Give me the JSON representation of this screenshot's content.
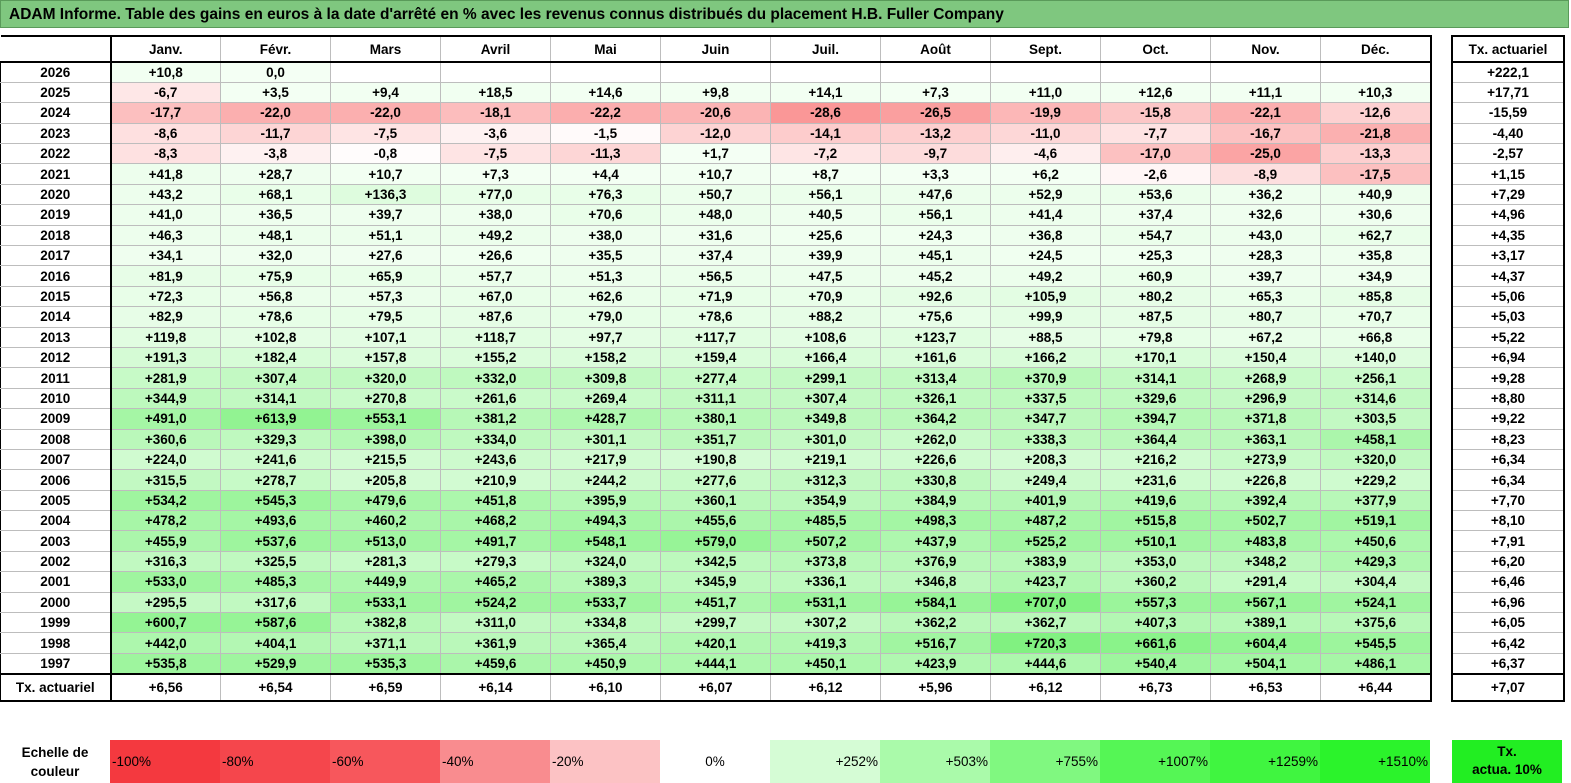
{
  "title": "ADAM Informe. Table des gains en euros à la date d'arrêté en % avec les revenus connus distribués du placement H.B. Fuller Company",
  "chart_data": {
    "type": "table",
    "columns": [
      "Janv.",
      "Févr.",
      "Mars",
      "Avril",
      "Mai",
      "Juin",
      "Juil.",
      "Août",
      "Sept.",
      "Oct.",
      "Nov.",
      "Déc."
    ],
    "side_header": "Tx. actuariel",
    "rows": [
      {
        "year": "2026",
        "values": [
          "+10,8",
          "0,0",
          "",
          "",
          "",
          "",
          "",
          "",
          "",
          "",
          "",
          ""
        ],
        "tx": "+222,1"
      },
      {
        "year": "2025",
        "values": [
          "-6,7",
          "+3,5",
          "+9,4",
          "+18,5",
          "+14,6",
          "+9,8",
          "+14,1",
          "+7,3",
          "+11,0",
          "+12,6",
          "+11,1",
          "+10,3"
        ],
        "tx": "+17,71"
      },
      {
        "year": "2024",
        "values": [
          "-17,7",
          "-22,0",
          "-22,0",
          "-18,1",
          "-22,2",
          "-20,6",
          "-28,6",
          "-26,5",
          "-19,9",
          "-15,8",
          "-22,1",
          "-12,6"
        ],
        "tx": "-15,59"
      },
      {
        "year": "2023",
        "values": [
          "-8,6",
          "-11,7",
          "-7,5",
          "-3,6",
          "-1,5",
          "-12,0",
          "-14,1",
          "-13,2",
          "-11,0",
          "-7,7",
          "-16,7",
          "-21,8"
        ],
        "tx": "-4,40"
      },
      {
        "year": "2022",
        "values": [
          "-8,3",
          "-3,8",
          "-0,8",
          "-7,5",
          "-11,3",
          "+1,7",
          "-7,2",
          "-9,7",
          "-4,6",
          "-17,0",
          "-25,0",
          "-13,3"
        ],
        "tx": "-2,57"
      },
      {
        "year": "2021",
        "values": [
          "+41,8",
          "+28,7",
          "+10,7",
          "+7,3",
          "+4,4",
          "+10,7",
          "+8,7",
          "+3,3",
          "+6,2",
          "-2,6",
          "-8,9",
          "-17,5"
        ],
        "tx": "+1,15"
      },
      {
        "year": "2020",
        "values": [
          "+43,2",
          "+68,1",
          "+136,3",
          "+77,0",
          "+76,3",
          "+50,7",
          "+56,1",
          "+47,6",
          "+52,9",
          "+53,6",
          "+36,2",
          "+40,9"
        ],
        "tx": "+7,29"
      },
      {
        "year": "2019",
        "values": [
          "+41,0",
          "+36,5",
          "+39,7",
          "+38,0",
          "+70,6",
          "+48,0",
          "+40,5",
          "+56,1",
          "+41,4",
          "+37,4",
          "+32,6",
          "+30,6"
        ],
        "tx": "+4,96"
      },
      {
        "year": "2018",
        "values": [
          "+46,3",
          "+48,1",
          "+51,1",
          "+49,2",
          "+38,0",
          "+31,6",
          "+25,6",
          "+24,3",
          "+36,8",
          "+54,7",
          "+43,0",
          "+62,7"
        ],
        "tx": "+4,35"
      },
      {
        "year": "2017",
        "values": [
          "+34,1",
          "+32,0",
          "+27,6",
          "+26,6",
          "+35,5",
          "+37,4",
          "+39,9",
          "+45,1",
          "+24,5",
          "+25,3",
          "+28,3",
          "+35,8"
        ],
        "tx": "+3,17"
      },
      {
        "year": "2016",
        "values": [
          "+81,9",
          "+75,9",
          "+65,9",
          "+57,7",
          "+51,3",
          "+56,5",
          "+47,5",
          "+45,2",
          "+49,2",
          "+60,9",
          "+39,7",
          "+34,9"
        ],
        "tx": "+4,37"
      },
      {
        "year": "2015",
        "values": [
          "+72,3",
          "+56,8",
          "+57,3",
          "+67,0",
          "+62,6",
          "+71,9",
          "+70,9",
          "+92,6",
          "+105,9",
          "+80,2",
          "+65,3",
          "+85,8"
        ],
        "tx": "+5,06"
      },
      {
        "year": "2014",
        "values": [
          "+82,9",
          "+78,6",
          "+79,5",
          "+87,6",
          "+79,0",
          "+78,6",
          "+88,2",
          "+75,6",
          "+99,9",
          "+87,5",
          "+80,7",
          "+70,7"
        ],
        "tx": "+5,03"
      },
      {
        "year": "2013",
        "values": [
          "+119,8",
          "+102,8",
          "+107,1",
          "+118,7",
          "+97,7",
          "+117,7",
          "+108,6",
          "+123,7",
          "+88,5",
          "+79,8",
          "+67,2",
          "+66,8"
        ],
        "tx": "+5,22"
      },
      {
        "year": "2012",
        "values": [
          "+191,3",
          "+182,4",
          "+157,8",
          "+155,2",
          "+158,2",
          "+159,4",
          "+166,4",
          "+161,6",
          "+166,2",
          "+170,1",
          "+150,4",
          "+140,0"
        ],
        "tx": "+6,94"
      },
      {
        "year": "2011",
        "values": [
          "+281,9",
          "+307,4",
          "+320,0",
          "+332,0",
          "+309,8",
          "+277,4",
          "+299,1",
          "+313,4",
          "+370,9",
          "+314,1",
          "+268,9",
          "+256,1"
        ],
        "tx": "+9,28"
      },
      {
        "year": "2010",
        "values": [
          "+344,9",
          "+314,1",
          "+270,8",
          "+261,6",
          "+269,4",
          "+311,1",
          "+307,4",
          "+326,1",
          "+337,5",
          "+329,6",
          "+296,9",
          "+314,6"
        ],
        "tx": "+8,80"
      },
      {
        "year": "2009",
        "values": [
          "+491,0",
          "+613,9",
          "+553,1",
          "+381,2",
          "+428,7",
          "+380,1",
          "+349,8",
          "+364,2",
          "+347,7",
          "+394,7",
          "+371,8",
          "+303,5"
        ],
        "tx": "+9,22"
      },
      {
        "year": "2008",
        "values": [
          "+360,6",
          "+329,3",
          "+398,0",
          "+334,0",
          "+301,1",
          "+351,7",
          "+301,0",
          "+262,0",
          "+338,3",
          "+364,4",
          "+363,1",
          "+458,1"
        ],
        "tx": "+8,23"
      },
      {
        "year": "2007",
        "values": [
          "+224,0",
          "+241,6",
          "+215,5",
          "+243,6",
          "+217,9",
          "+190,8",
          "+219,1",
          "+226,6",
          "+208,3",
          "+216,2",
          "+273,9",
          "+320,0"
        ],
        "tx": "+6,34"
      },
      {
        "year": "2006",
        "values": [
          "+315,5",
          "+278,7",
          "+205,8",
          "+210,9",
          "+244,2",
          "+277,6",
          "+312,3",
          "+330,8",
          "+249,4",
          "+231,6",
          "+226,8",
          "+229,2"
        ],
        "tx": "+6,34"
      },
      {
        "year": "2005",
        "values": [
          "+534,2",
          "+545,3",
          "+479,6",
          "+451,8",
          "+395,9",
          "+360,1",
          "+354,9",
          "+384,9",
          "+401,9",
          "+419,6",
          "+392,4",
          "+377,9"
        ],
        "tx": "+7,70"
      },
      {
        "year": "2004",
        "values": [
          "+478,2",
          "+493,6",
          "+460,2",
          "+468,2",
          "+494,3",
          "+455,6",
          "+485,5",
          "+498,3",
          "+487,2",
          "+515,8",
          "+502,7",
          "+519,1"
        ],
        "tx": "+8,10"
      },
      {
        "year": "2003",
        "values": [
          "+455,9",
          "+537,6",
          "+513,0",
          "+491,7",
          "+548,1",
          "+579,0",
          "+507,2",
          "+437,9",
          "+525,2",
          "+510,1",
          "+483,8",
          "+450,6"
        ],
        "tx": "+7,91"
      },
      {
        "year": "2002",
        "values": [
          "+316,3",
          "+325,5",
          "+281,3",
          "+279,3",
          "+324,0",
          "+342,5",
          "+373,8",
          "+376,9",
          "+383,9",
          "+353,0",
          "+348,2",
          "+429,3"
        ],
        "tx": "+6,20"
      },
      {
        "year": "2001",
        "values": [
          "+533,0",
          "+485,3",
          "+449,9",
          "+465,2",
          "+389,3",
          "+345,9",
          "+336,1",
          "+346,8",
          "+423,7",
          "+360,2",
          "+291,4",
          "+304,4"
        ],
        "tx": "+6,46"
      },
      {
        "year": "2000",
        "values": [
          "+295,5",
          "+317,6",
          "+533,1",
          "+524,2",
          "+533,7",
          "+451,7",
          "+531,1",
          "+584,1",
          "+707,0",
          "+557,3",
          "+567,1",
          "+524,1"
        ],
        "tx": "+6,96"
      },
      {
        "year": "1999",
        "values": [
          "+600,7",
          "+587,6",
          "+382,8",
          "+311,0",
          "+334,8",
          "+299,7",
          "+307,2",
          "+362,2",
          "+362,7",
          "+407,3",
          "+389,1",
          "+375,6"
        ],
        "tx": "+6,05"
      },
      {
        "year": "1998",
        "values": [
          "+442,0",
          "+404,1",
          "+371,1",
          "+361,9",
          "+365,4",
          "+420,1",
          "+419,3",
          "+516,7",
          "+720,3",
          "+661,6",
          "+604,4",
          "+545,5"
        ],
        "tx": "+6,42"
      },
      {
        "year": "1997",
        "values": [
          "+535,8",
          "+529,9",
          "+535,3",
          "+459,6",
          "+450,9",
          "+444,1",
          "+450,1",
          "+423,9",
          "+444,6",
          "+540,4",
          "+504,1",
          "+486,1"
        ],
        "tx": "+6,37"
      }
    ],
    "footer": {
      "label": "Tx. actuariel",
      "values": [
        "+6,56",
        "+6,54",
        "+6,59",
        "+6,14",
        "+6,10",
        "+6,07",
        "+6,12",
        "+5,96",
        "+6,12",
        "+6,73",
        "+6,53",
        "+6,44"
      ],
      "tx": "+7,07"
    },
    "scale": {
      "label_line1": "Echelle de",
      "label_line2": "couleur",
      "steps": [
        {
          "text": "-100%",
          "color": "#f4393f"
        },
        {
          "text": "-80%",
          "color": "#f5464c"
        },
        {
          "text": "-60%",
          "color": "#f7575c"
        },
        {
          "text": "-40%",
          "color": "#f98c8f"
        },
        {
          "text": "-20%",
          "color": "#fcc2c4"
        },
        {
          "text": "0%",
          "color": "#ffffff"
        },
        {
          "text": "+252%",
          "color": "#d5fcd5"
        },
        {
          "text": "+503%",
          "color": "#aafaaa"
        },
        {
          "text": "+755%",
          "color": "#80f880"
        },
        {
          "text": "+1007%",
          "color": "#55f655"
        },
        {
          "text": "+1259%",
          "color": "#40f540"
        },
        {
          "text": "+1510%",
          "color": "#2bf32b"
        }
      ],
      "final_line1": "Tx.",
      "final_line2": "actua. 10%",
      "final_color": "#22ee22"
    }
  }
}
